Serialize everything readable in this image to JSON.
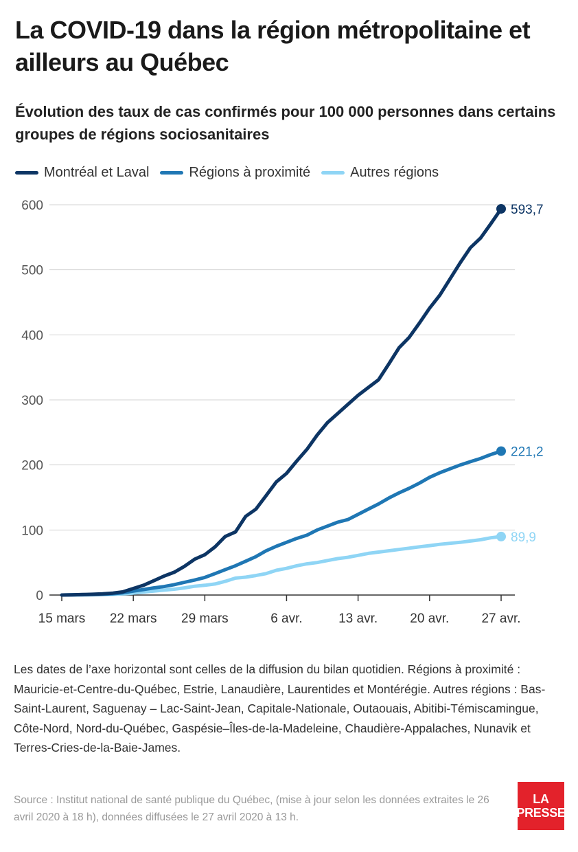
{
  "title": "La COVID-19 dans la région métropolitaine et ailleurs au Québec",
  "subtitle": "Évolution des taux de cas confirmés pour 100 000 personnes dans certains groupes de régions sociosanitaires",
  "notes": "Les dates de l’axe horizontal sont celles de la diffusion du bilan quotidien. Régions à proximité : Mauricie-et-Centre-du-Québec, Estrie, Lanaudière, Laurentides et Montérégie. Autres régions : Bas-Saint-Laurent, Saguenay – Lac-Saint-Jean, Capitale-Nationale, Outaouais, Abitibi-Témiscamingue, Côte-Nord, Nord-du-Québec, Gaspésie–Îles-de-la-Madeleine, Chaudière-Appalaches, Nunavik et Terres-Cries-de-la-Baie-James.",
  "source": "Source : Institut national de santé publique du Québec, (mise à jour selon les données extraites le 26 avril 2020 à 18 h), données diffusées le 27 avril 2020 à 13 h.",
  "logo": {
    "line1": "LA",
    "line2": "PRESSE",
    "color": "#e3222b"
  },
  "chart_data": {
    "type": "line",
    "x": [
      "15 mars",
      "16 mars",
      "17 mars",
      "18 mars",
      "19 mars",
      "20 mars",
      "21 mars",
      "22 mars",
      "23 mars",
      "24 mars",
      "25 mars",
      "26 mars",
      "27 mars",
      "28 mars",
      "29 mars",
      "30 mars",
      "31 mars",
      "1 avr.",
      "2 avr.",
      "3 avr.",
      "4 avr.",
      "5 avr.",
      "6 avr.",
      "7 avr.",
      "8 avr.",
      "9 avr.",
      "10 avr.",
      "11 avr.",
      "12 avr.",
      "13 avr.",
      "14 avr.",
      "15 avr.",
      "16 avr.",
      "17 avr.",
      "18 avr.",
      "19 avr.",
      "20 avr.",
      "21 avr.",
      "22 avr.",
      "23 avr.",
      "24 avr.",
      "25 avr.",
      "26 avr.",
      "27 avr."
    ],
    "xticks": [
      "15 mars",
      "22 mars",
      "29 mars",
      "6 avr.",
      "13 avr.",
      "20 avr.",
      "27 avr."
    ],
    "ylim": [
      0,
      600
    ],
    "yticks": [
      0,
      100,
      200,
      300,
      400,
      500,
      600
    ],
    "series": [
      {
        "name": "Montréal et Laval",
        "color": "#0d3564",
        "end_label": "593,7",
        "values": [
          0,
          0.3,
          0.7,
          1.2,
          1.8,
          3,
          5,
          10,
          15,
          22,
          29,
          35,
          44,
          55,
          62,
          74,
          90,
          97,
          121,
          132,
          153,
          174,
          187,
          206,
          224,
          246,
          265,
          279,
          293,
          307,
          319,
          331,
          355,
          380,
          396,
          418,
          441,
          461,
          486,
          511,
          534,
          549,
          571,
          593.7
        ]
      },
      {
        "name": "Régions à proximité",
        "color": "#1f77b4",
        "end_label": "221,2",
        "values": [
          0,
          0.2,
          0.4,
          0.8,
          1.2,
          2,
          3.5,
          6,
          8.5,
          11,
          13,
          16,
          19.5,
          23,
          27,
          33,
          39,
          45,
          52,
          59,
          68,
          75,
          81,
          87,
          92,
          100,
          106,
          112,
          116,
          124,
          132,
          140,
          149,
          157,
          164,
          172,
          181,
          188,
          194,
          200,
          205,
          210,
          216,
          221.2
        ]
      },
      {
        "name": "Autres régions",
        "color": "#8fd5f5",
        "end_label": "89,9",
        "values": [
          0,
          0.1,
          0.2,
          0.4,
          0.7,
          1.1,
          1.8,
          3,
          4.5,
          6,
          7.5,
          9,
          11,
          13.5,
          15,
          17,
          21,
          26,
          27.5,
          30,
          33,
          38,
          41,
          45,
          48,
          50,
          53,
          56,
          58,
          61,
          64,
          66,
          68,
          70,
          72,
          74,
          76,
          78,
          79.5,
          81,
          83,
          85,
          88,
          89.9
        ]
      }
    ]
  }
}
